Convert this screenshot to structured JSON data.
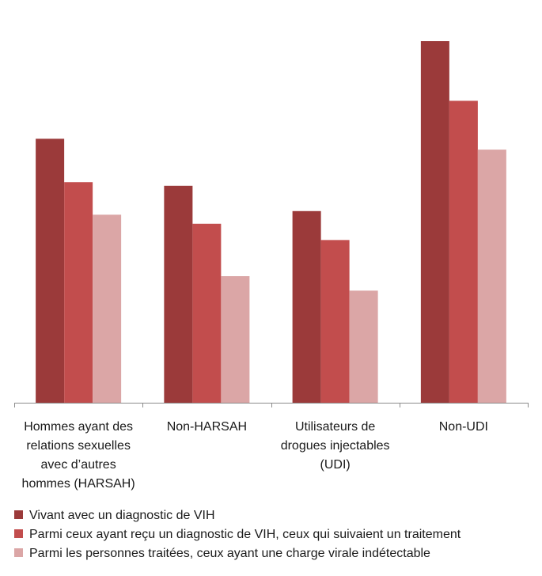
{
  "chart_data": {
    "type": "bar",
    "title": "",
    "xlabel": "",
    "ylabel": "",
    "grid": false,
    "legend_position": "bottom",
    "ylim": [
      0,
      1
    ],
    "categories": [
      [
        "Hommes ayant des",
        "relations sexuelles",
        "avec d’autres",
        "hommes (HARSAH)"
      ],
      [
        "Non-HARSAH"
      ],
      [
        "Utilisateurs de",
        "drogues injectables",
        "(UDI)"
      ],
      [
        "Non-UDI"
      ]
    ],
    "series": [
      {
        "name": "Vivant avec un diagnostic de VIH",
        "color": "#9b3a3a",
        "values": [
          0.73,
          0.6,
          0.53,
          1.0
        ]
      },
      {
        "name": "Parmi ceux ayant reçu un diagnostic de VIH, ceux qui suivaient un traitement",
        "color": "#c24d4d",
        "values": [
          0.61,
          0.495,
          0.45,
          0.835
        ]
      },
      {
        "name": "Parmi les personnes traitées, ceux ayant une charge virale indétectable",
        "color": "#dba6a6",
        "values": [
          0.52,
          0.35,
          0.31,
          0.7
        ]
      }
    ]
  }
}
